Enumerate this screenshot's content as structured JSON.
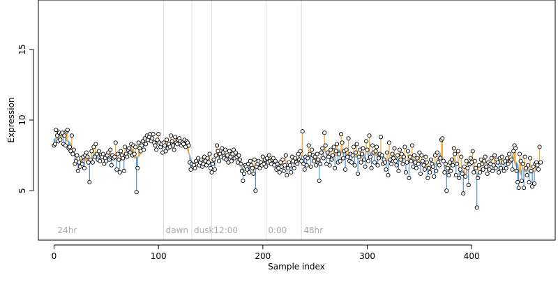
{
  "chart_data": {
    "type": "scatter",
    "title": "",
    "xlabel": "Sample index",
    "ylabel": "Expression",
    "xlim": [
      -15,
      480
    ],
    "ylim": [
      1.5,
      18.5
    ],
    "x_ticks": [
      0,
      100,
      200,
      300,
      400
    ],
    "y_ticks": [
      5,
      10,
      15
    ],
    "grid": false,
    "colors": {
      "above_fit": "#f5a623",
      "below_fit": "#4a90d9",
      "fit_line": "#aaaaaa",
      "point_fill": "#ffffff",
      "point_stroke": "#000000",
      "condition_line": "#dddddd",
      "condition_label": "#aaaaaa"
    },
    "conditions": [
      {
        "label": "24hr",
        "x": 0
      },
      {
        "label": "dawn",
        "x": 105
      },
      {
        "label": "dusk",
        "x": 132
      },
      {
        "label": "12:00",
        "x": 151
      },
      {
        "label": "0:00",
        "x": 203
      },
      {
        "label": "48hr",
        "x": 237
      }
    ],
    "series": [
      {
        "values": [
          8.2,
          8.3,
          9.3,
          8.9,
          8.5,
          9.1,
          8.6,
          9.0,
          9.1,
          8.3,
          8.9,
          8.2,
          9.2,
          9.3,
          8.0,
          8.1,
          7.8,
          8.9,
          7.6,
          7.9,
          6.9,
          7.1,
          7.5,
          6.4,
          7.0,
          6.7,
          7.3,
          6.9,
          7.4,
          6.6,
          7.5,
          7.7,
          7.4,
          7.0,
          5.6,
          7.2,
          7.8,
          7.0,
          8.1,
          7.4,
          8.3,
          7.6,
          7.2,
          7.8,
          7.1,
          7.5,
          7.4,
          7.6,
          6.9,
          7.3,
          7.1,
          7.5,
          7.7,
          7.2,
          7.9,
          6.8,
          7.5,
          7.3,
          7.4,
          8.4,
          6.5,
          7.6,
          7.2,
          6.3,
          7.8,
          7.5,
          7.3,
          6.4,
          8.1,
          7.6,
          7.4,
          7.9,
          8.0,
          7.7,
          8.3,
          7.5,
          8.2,
          7.6,
          8.1,
          4.9,
          6.6,
          8.4,
          8.0,
          7.8,
          8.2,
          8.5,
          7.9,
          8.7,
          8.3,
          8.9,
          8.6,
          8.8,
          9.0,
          8.5,
          8.7,
          9.0,
          8.4,
          8.2,
          7.9,
          8.6,
          9.0,
          8.4,
          8.1,
          8.3,
          7.7,
          8.4,
          8.2,
          7.8,
          8.6,
          8.0,
          8.3,
          8.1,
          8.9,
          8.5,
          8.2,
          7.9,
          8.8,
          8.4,
          8.3,
          8.6,
          8.7,
          8.5,
          8.2,
          8.4,
          8.3,
          8.6,
          8.1,
          8.5,
          8.4,
          8.2,
          7.0,
          6.5,
          6.9,
          6.7,
          6.8,
          6.6,
          7.1,
          6.9,
          7.3,
          6.8,
          7.0,
          7.2,
          6.7,
          6.9,
          7.4,
          7.1,
          6.8,
          7.3,
          7.0,
          7.6,
          6.6,
          6.3,
          6.9,
          7.2,
          6.5,
          7.5,
          8.2,
          7.8,
          7.1,
          7.6,
          7.4,
          8.0,
          7.7,
          7.3,
          7.9,
          7.2,
          7.5,
          7.0,
          7.8,
          7.4,
          7.1,
          7.6,
          7.9,
          7.3,
          7.7,
          7.4,
          7.0,
          7.5,
          7.2,
          6.9,
          6.4,
          5.7,
          6.2,
          6.8,
          6.7,
          6.5,
          6.9,
          6.3,
          7.1,
          6.8,
          6.6,
          6.2,
          7.2,
          5.0,
          6.7,
          6.9,
          7.1,
          6.6,
          7.0,
          6.8,
          7.4,
          6.9,
          7.2,
          6.7,
          7.3,
          7.0,
          7.5,
          7.1,
          6.9,
          7.2,
          7.3,
          6.8,
          7.1,
          6.5,
          6.9,
          6.6,
          6.3,
          7.0,
          6.7,
          7.2,
          6.4,
          6.8,
          7.5,
          6.1,
          6.6,
          7.0,
          6.8,
          6.3,
          7.4,
          7.1,
          6.6,
          7.3,
          7.0,
          6.9,
          7.6,
          7.2,
          7.8,
          7.1,
          9.2,
          6.9,
          6.5,
          7.4,
          6.8,
          7.3,
          8.2,
          7.6,
          6.7,
          7.9,
          7.5,
          7.1,
          7.4,
          6.8,
          7.6,
          7.2,
          5.7,
          6.9,
          7.7,
          8.0,
          7.3,
          9.1,
          8.2,
          6.9,
          7.7,
          7.4,
          6.8,
          7.9,
          7.2,
          7.5,
          8.1,
          6.6,
          7.8,
          8.3,
          7.0,
          7.6,
          7.1,
          9.0,
          8.4,
          7.3,
          7.8,
          6.5,
          7.9,
          7.4,
          8.7,
          7.1,
          7.6,
          7.0,
          7.5,
          8.1,
          6.8,
          7.7,
          8.3,
          6.2,
          7.4,
          7.9,
          7.0,
          7.6,
          8.0,
          7.2,
          6.7,
          8.5,
          7.9,
          7.1,
          8.9,
          7.4,
          6.6,
          8.2,
          7.7,
          7.0,
          7.8,
          8.1,
          6.8,
          7.3,
          7.6,
          8.8,
          7.5,
          6.9,
          7.2,
          7.0,
          6.5,
          7.7,
          6.1,
          8.4,
          7.2,
          6.9,
          7.6,
          7.3,
          8.0,
          7.1,
          6.8,
          7.5,
          6.4,
          7.9,
          7.2,
          7.6,
          6.9,
          7.4,
          8.1,
          6.3,
          7.0,
          7.8,
          5.9,
          7.4,
          7.1,
          8.2,
          6.7,
          7.5,
          7.0,
          6.6,
          7.3,
          6.9,
          7.7,
          6.2,
          7.5,
          7.1,
          6.8,
          6.5,
          7.4,
          7.0,
          5.9,
          6.6,
          6.3,
          7.2,
          6.9,
          6.7,
          6.0,
          7.5,
          6.4,
          7.7,
          7.0,
          6.8,
          7.3,
          8.6,
          8.7,
          7.1,
          6.3,
          6.9,
          5.0,
          6.6,
          6.1,
          7.0,
          6.4,
          7.2,
          6.8,
          8.0,
          7.6,
          6.1,
          6.9,
          7.8,
          5.9,
          6.5,
          7.4,
          6.2,
          4.8,
          6.7,
          6.0,
          7.1,
          6.6,
          5.4,
          6.9,
          7.3,
          7.0,
          7.8,
          6.3,
          7.1,
          6.6,
          3.8,
          5.9,
          6.8,
          6.3,
          7.2,
          6.9,
          6.5,
          7.1,
          7.4,
          6.7,
          6.2,
          7.0,
          6.5,
          6.9,
          7.3,
          6.4,
          6.8,
          7.5,
          6.6,
          7.2,
          7.0,
          6.3,
          7.3,
          6.6,
          7.4,
          7.0,
          6.4,
          7.1,
          6.6,
          7.3,
          6.9,
          7.6,
          7.1,
          7.2,
          6.5,
          7.8,
          8.2,
          8.0,
          6.4,
          5.6,
          5.2,
          7.6,
          7.1,
          5.7,
          6.9,
          5.2,
          7.4,
          6.6,
          6.1,
          6.8,
          5.6,
          7.3,
          6.4,
          5.3,
          6.7,
          5.5,
          6.9,
          7.0,
          6.8,
          6.5,
          8.1,
          7.0
        ]
      }
    ]
  }
}
